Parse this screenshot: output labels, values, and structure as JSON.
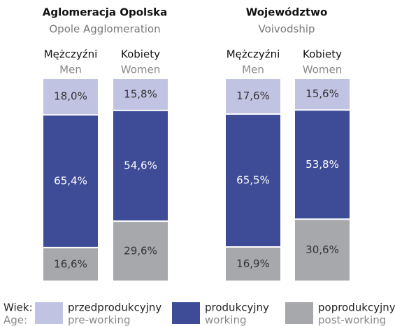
{
  "chart_data": {
    "type": "bar",
    "stacked": true,
    "groups": [
      {
        "title": "Aglomeracja Opolska",
        "subtitle": "Opole Agglomeration"
      },
      {
        "title": "Województwo",
        "subtitle": "Voivodship"
      }
    ],
    "categories": [
      "Mężczyźni",
      "Kobiety",
      "Mężczyźni",
      "Kobiety"
    ],
    "categories_en": [
      "Men",
      "Women",
      "Men",
      "Women"
    ],
    "legend_title": "Wiek:",
    "legend_title_en": "Age:",
    "series": [
      {
        "name": "przedprodukcyjny",
        "name_en": "pre-working",
        "color": "#c1c3e3",
        "values": [
          18.0,
          15.8,
          17.6,
          15.6
        ],
        "value_labels": [
          "18,0%",
          "15,8%",
          "17,6%",
          "15,6%"
        ]
      },
      {
        "name": "produkcyjny",
        "name_en": "working",
        "color": "#3e4b97",
        "values": [
          65.4,
          54.6,
          65.5,
          53.8
        ],
        "value_labels": [
          "65,4%",
          "54,6%",
          "65,5%",
          "53,8%"
        ]
      },
      {
        "name": "poprodukcyjny",
        "name_en": "post-working",
        "color": "#a7a8ab",
        "values": [
          16.6,
          29.6,
          16.9,
          30.6
        ],
        "value_labels": [
          "16,6%",
          "29,6%",
          "16,9%",
          "30,6%"
        ]
      }
    ]
  }
}
